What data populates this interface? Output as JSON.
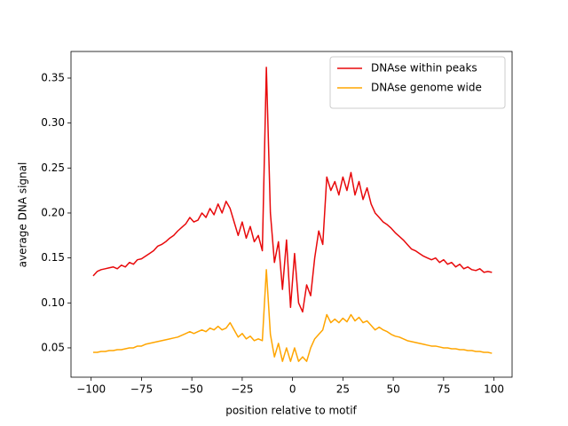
{
  "chart_data": {
    "type": "line",
    "xlabel": "position relative to motif",
    "ylabel": "average DNA signal",
    "x": [
      -99,
      -97,
      -95,
      -93,
      -91,
      -89,
      -87,
      -85,
      -83,
      -81,
      -79,
      -77,
      -75,
      -73,
      -71,
      -69,
      -67,
      -65,
      -63,
      -61,
      -59,
      -57,
      -55,
      -53,
      -51,
      -49,
      -47,
      -45,
      -43,
      -41,
      -39,
      -37,
      -35,
      -33,
      -31,
      -29,
      -27,
      -25,
      -23,
      -21,
      -19,
      -17,
      -15,
      -13,
      -11,
      -9,
      -7,
      -5,
      -3,
      -1,
      1,
      3,
      5,
      7,
      9,
      11,
      13,
      15,
      17,
      19,
      21,
      23,
      25,
      27,
      29,
      31,
      33,
      35,
      37,
      39,
      41,
      43,
      45,
      47,
      49,
      51,
      53,
      55,
      57,
      59,
      61,
      63,
      65,
      67,
      69,
      71,
      73,
      75,
      77,
      79,
      81,
      83,
      85,
      87,
      89,
      91,
      93,
      95,
      97,
      99
    ],
    "series": [
      {
        "name": "DNAse within peaks",
        "color": "#e8090b",
        "values": [
          0.13,
          0.135,
          0.137,
          0.138,
          0.139,
          0.14,
          0.138,
          0.142,
          0.14,
          0.145,
          0.143,
          0.148,
          0.149,
          0.152,
          0.155,
          0.158,
          0.163,
          0.165,
          0.168,
          0.172,
          0.175,
          0.18,
          0.184,
          0.188,
          0.195,
          0.19,
          0.192,
          0.2,
          0.195,
          0.205,
          0.198,
          0.21,
          0.2,
          0.213,
          0.205,
          0.19,
          0.175,
          0.19,
          0.172,
          0.185,
          0.168,
          0.175,
          0.158,
          0.362,
          0.2,
          0.145,
          0.168,
          0.115,
          0.17,
          0.095,
          0.155,
          0.1,
          0.09,
          0.12,
          0.108,
          0.15,
          0.18,
          0.165,
          0.24,
          0.225,
          0.235,
          0.22,
          0.24,
          0.225,
          0.245,
          0.22,
          0.235,
          0.215,
          0.228,
          0.21,
          0.2,
          0.195,
          0.19,
          0.187,
          0.183,
          0.178,
          0.174,
          0.17,
          0.165,
          0.16,
          0.158,
          0.155,
          0.152,
          0.15,
          0.148,
          0.15,
          0.145,
          0.148,
          0.143,
          0.145,
          0.14,
          0.143,
          0.138,
          0.14,
          0.137,
          0.136,
          0.138,
          0.134,
          0.135,
          0.134
        ]
      },
      {
        "name": "DNAse genome wide",
        "color": "#ffa500",
        "values": [
          0.045,
          0.045,
          0.046,
          0.046,
          0.047,
          0.047,
          0.048,
          0.048,
          0.049,
          0.05,
          0.05,
          0.052,
          0.052,
          0.054,
          0.055,
          0.056,
          0.057,
          0.058,
          0.059,
          0.06,
          0.061,
          0.062,
          0.064,
          0.066,
          0.068,
          0.066,
          0.068,
          0.07,
          0.068,
          0.072,
          0.07,
          0.074,
          0.07,
          0.072,
          0.078,
          0.07,
          0.062,
          0.066,
          0.06,
          0.063,
          0.058,
          0.06,
          0.058,
          0.137,
          0.065,
          0.04,
          0.055,
          0.035,
          0.05,
          0.035,
          0.05,
          0.035,
          0.04,
          0.035,
          0.05,
          0.06,
          0.065,
          0.07,
          0.087,
          0.078,
          0.082,
          0.078,
          0.083,
          0.079,
          0.087,
          0.08,
          0.084,
          0.078,
          0.08,
          0.075,
          0.07,
          0.073,
          0.07,
          0.068,
          0.065,
          0.063,
          0.062,
          0.06,
          0.058,
          0.057,
          0.056,
          0.055,
          0.054,
          0.053,
          0.052,
          0.052,
          0.051,
          0.05,
          0.05,
          0.049,
          0.049,
          0.048,
          0.048,
          0.047,
          0.047,
          0.046,
          0.046,
          0.045,
          0.045,
          0.044
        ]
      }
    ],
    "xlim": [
      -110,
      109
    ],
    "ylim": [
      0.0174,
      0.3796
    ],
    "xticks": [
      {
        "value": -100,
        "label": "−100"
      },
      {
        "value": -75,
        "label": "−75"
      },
      {
        "value": -50,
        "label": "−50"
      },
      {
        "value": -25,
        "label": "−25"
      },
      0,
      25,
      50,
      75,
      100
    ],
    "yticks": [
      0.05,
      {
        "value": 0.1,
        "label": "0.10"
      },
      0.15,
      {
        "value": 0.2,
        "label": "0.20"
      },
      0.25,
      {
        "value": 0.3,
        "label": "0.30"
      },
      0.35
    ],
    "legend": "upper right"
  }
}
